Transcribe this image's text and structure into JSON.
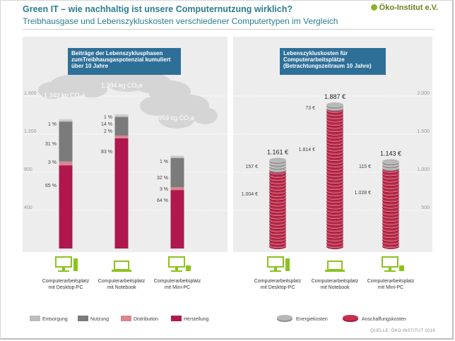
{
  "header": {
    "title": "Green IT – wie nachhaltig ist unsere Computernutzung wirklich?",
    "subtitle": "Treibhausgase und Lebenszykluskosten verschiedener Computertypen im Vergleich",
    "logo": "Öko-Institut e.V."
  },
  "footer": {
    "source": "QUELLE: ÖKO-INSTITUT 2016"
  },
  "colors": {
    "entsorgung": "#bdbdbd",
    "nutzung": "#7b7b7b",
    "distribution": "#d9868f",
    "herstellung": "#b0174f",
    "energiekosten": "#b7b7b7",
    "anschaffungskosten": "#c5304e",
    "device": "#8dc21f",
    "box": "#2e6f98",
    "teal": "#2b7d8f"
  },
  "chart_data": [
    {
      "type": "bar",
      "title": "Beiträge der Lebenszyklusphasen zumTreibhausgaspotenzial kumuliert über 10 Jahre",
      "categories": [
        "Computerarbeitsplatz mit Desktop-PC",
        "Computerarbeitsplatz mit Notebook",
        "Computerarbeitsplatz mit Mini-PC"
      ],
      "totals": [
        1343,
        1394,
        959
      ],
      "total_labels": [
        "1.343 kg CO₂e",
        "1.394 kg CO₂e",
        "959 kg CO₂e"
      ],
      "series": [
        {
          "name": "Herstellung",
          "percent": [
            65,
            83,
            64
          ],
          "labels": [
            "65 %",
            "83 %",
            "64 %"
          ]
        },
        {
          "name": "Distribution",
          "percent": [
            3,
            2,
            3
          ],
          "labels": [
            "3 %",
            "2 %",
            "3 %"
          ]
        },
        {
          "name": "Nutzung",
          "percent": [
            31,
            14,
            32
          ],
          "labels": [
            "31 %",
            "14 %",
            "32 %"
          ]
        },
        {
          "name": "Entsorgung",
          "percent": [
            1,
            1,
            1
          ],
          "labels": [
            "1 %",
            "1 %",
            "1 %"
          ]
        }
      ],
      "ylim": [
        0,
        1600
      ],
      "yticks": [
        400,
        800,
        1200,
        1600
      ],
      "ytick_labels": [
        "400",
        "800",
        "1.200",
        "1.600"
      ]
    },
    {
      "type": "bar",
      "title": "Lebenszykluskosten für Computerarbeitsplätze (Betrachtungszeitraum 10 Jahre)",
      "categories": [
        "Computerarbeitsplatz mit Desktop-PC",
        "Computerarbeitsplatz mit Notebook",
        "Computerarbeitsplatz mit Mini-PC"
      ],
      "totals": [
        1161,
        1887,
        1143
      ],
      "total_labels": [
        "1.161 €",
        "1.887 €",
        "1.143 €"
      ],
      "series": [
        {
          "name": "Anschaffungskosten",
          "values": [
            1004,
            1814,
            1028
          ],
          "labels": [
            "1.004 €",
            "1.814 €",
            "1.028 €"
          ]
        },
        {
          "name": "Energiekosten",
          "values": [
            157,
            73,
            115
          ],
          "labels": [
            "157 €",
            "73 €",
            "115 €"
          ]
        }
      ],
      "ylim": [
        0,
        2000
      ],
      "yticks": [
        500,
        1000,
        1500,
        2000
      ],
      "ytick_labels": [
        "500",
        "1.000",
        "1.500",
        "2.000"
      ]
    }
  ],
  "legend": {
    "entsorgung": "Entsorgung",
    "nutzung": "Nutzung",
    "distribution": "Distribution",
    "herstellung": "Herstellung",
    "energiekosten": "Energiekosten",
    "anschaffungskosten": "Anschaffungskosten"
  },
  "devices": [
    {
      "icon": "desktop-pc-icon",
      "label_1": "Computerarbeitsplatz",
      "label_2": "mit Desktop-PC"
    },
    {
      "icon": "notebook-icon",
      "label_1": "Computerarbeitsplatz",
      "label_2": "mit Notebook"
    },
    {
      "icon": "mini-pc-icon",
      "label_1": "Computerarbeitsplatz",
      "label_2": "mit Mini-PC"
    }
  ]
}
